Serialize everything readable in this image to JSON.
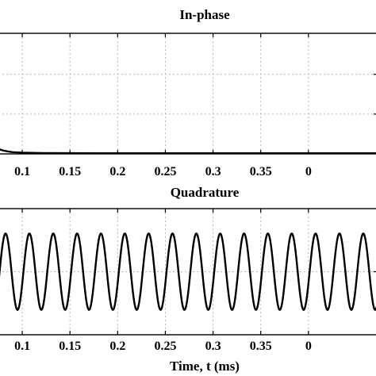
{
  "chart_data": [
    {
      "type": "line",
      "title": "In-phase",
      "xlabel": "",
      "ylabel": "",
      "xlim": [
        0.075,
        0.4725
      ],
      "ylim": [
        0,
        1.5
      ],
      "x_ticks": [
        "0.1",
        "0.15",
        "0.2",
        "0.25",
        "0.3",
        "0.35",
        "0"
      ],
      "y_grid_fractions": [
        0.33,
        0.66
      ],
      "grid": true,
      "series": [
        {
          "x": [
            0.075,
            0.08,
            0.085,
            0.09,
            0.1,
            0.12,
            0.15,
            0.2,
            0.25,
            0.3,
            0.35,
            0.4,
            0.45,
            0.4725
          ],
          "y": [
            0.06,
            0.042,
            0.03,
            0.022,
            0.015,
            0.011,
            0.009,
            0.008,
            0.008,
            0.008,
            0.008,
            0.008,
            0.008,
            0.008
          ]
        }
      ]
    },
    {
      "type": "line",
      "title": "Quadrature",
      "xlabel": "Time, t (ms)",
      "ylabel": "",
      "xlim": [
        0.075,
        0.4725
      ],
      "ylim": [
        -1.65,
        1.65
      ],
      "x_ticks": [
        "0.1",
        "0.15",
        "0.2",
        "0.25",
        "0.3",
        "0.35",
        "0"
      ],
      "y_grid_fractions": [
        0.5
      ],
      "grid": true,
      "series": [
        {
          "function": "sine",
          "amplitude": 1,
          "period_ms": 0.025,
          "peak_at_ms": 0.0825,
          "samples": 600
        }
      ]
    }
  ]
}
